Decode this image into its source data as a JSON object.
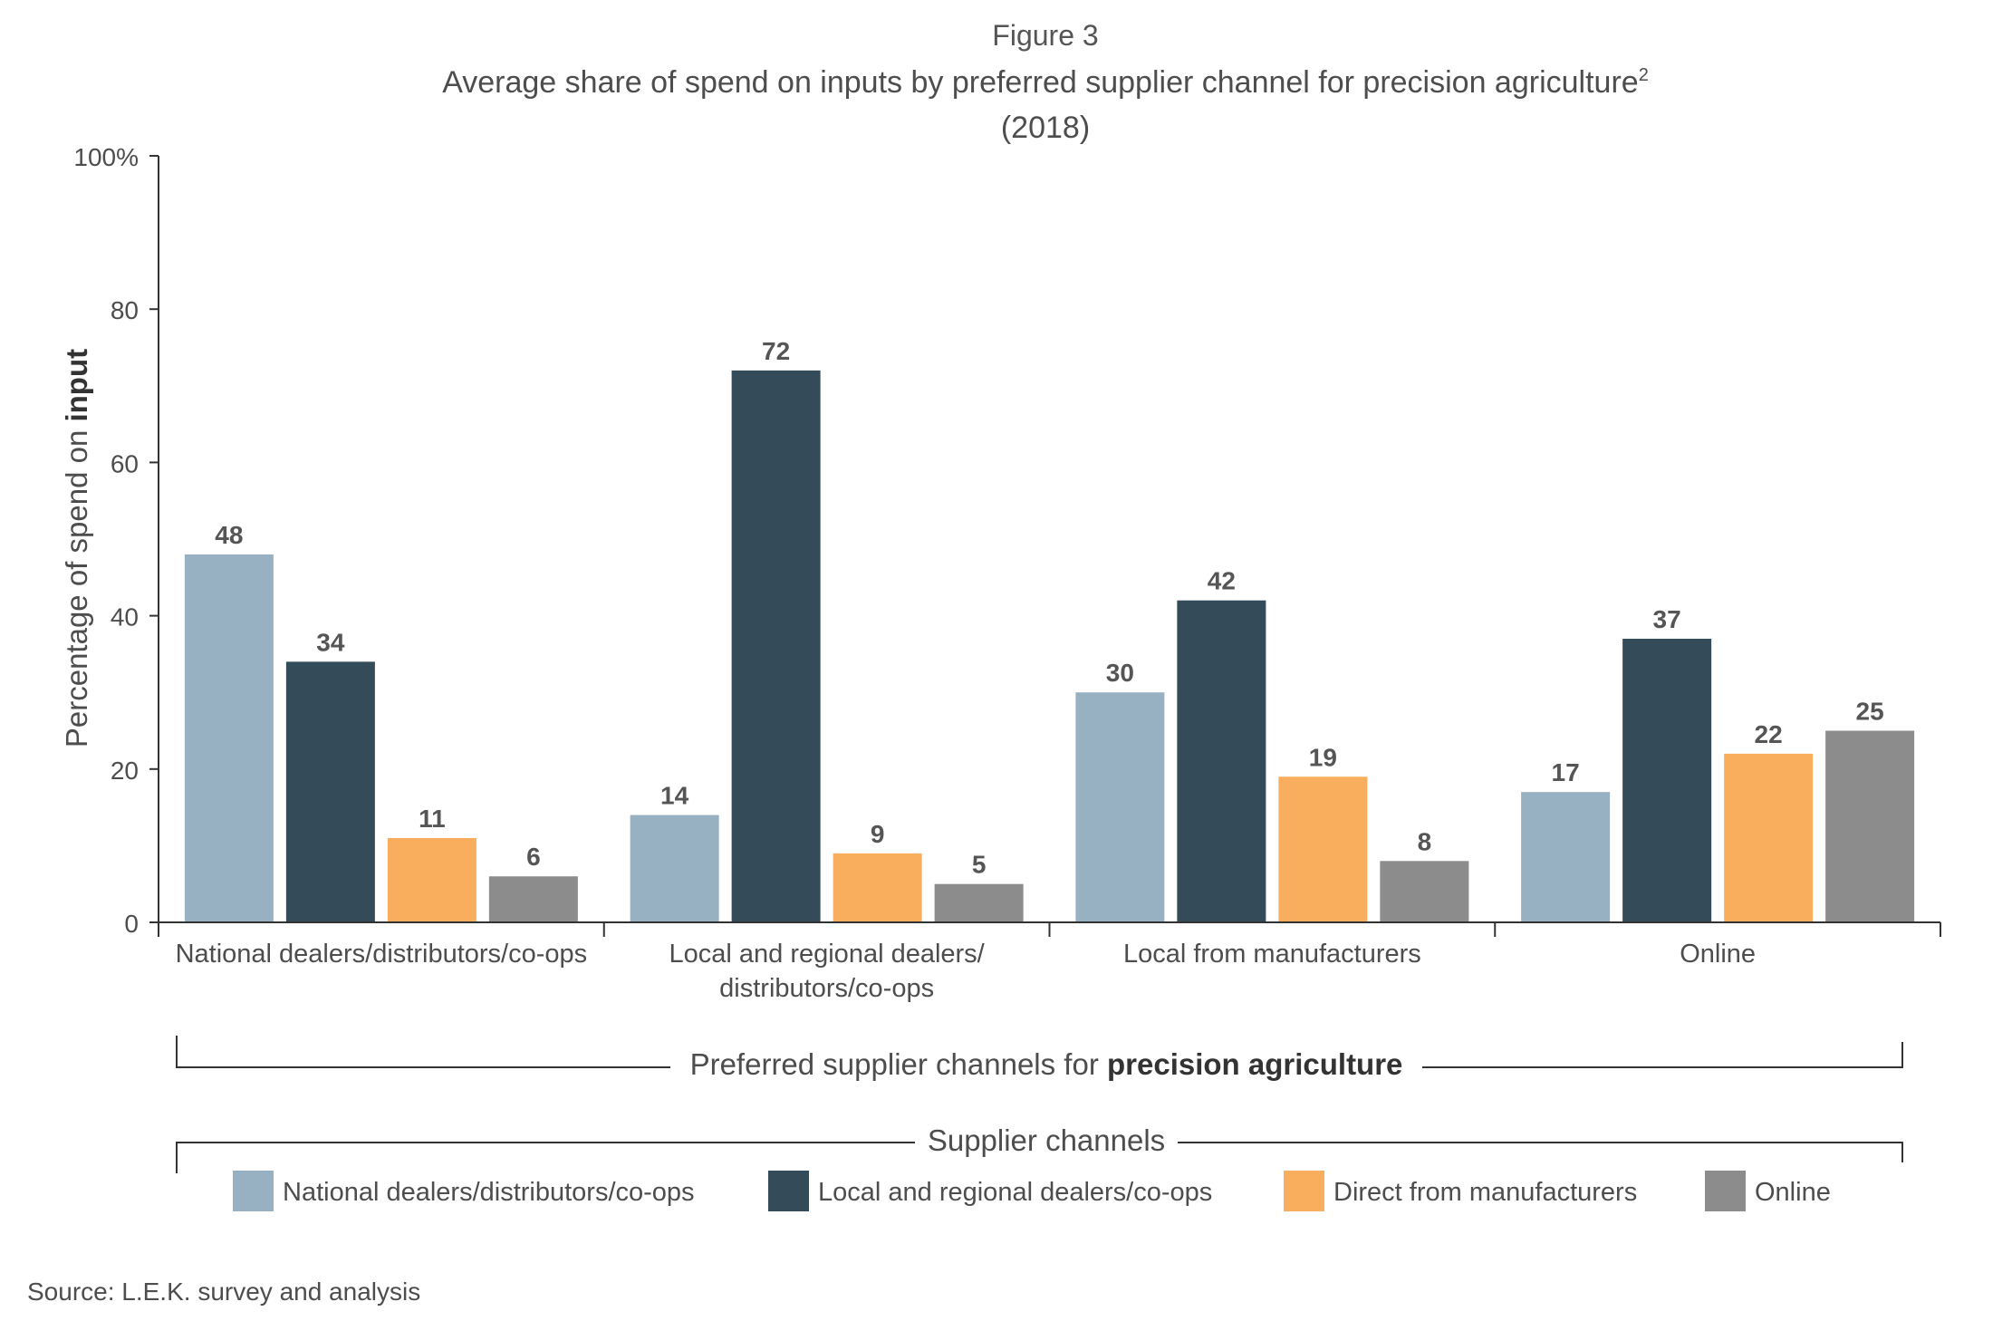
{
  "figure_label": "Figure 3",
  "source": "Source: L.E.K. survey and analysis",
  "chart_data": {
    "type": "bar",
    "title": "Average share of spend on inputs by preferred supplier channel for precision agriculture",
    "title_footnote": "2",
    "subtitle": "(2018)",
    "ylabel_prefix": "Percentage of spend on ",
    "ylabel_emphasis": "input",
    "xlabel_prefix": "Preferred supplier channels for ",
    "xlabel_emphasis": "precision agriculture",
    "legend_title": "Supplier channels",
    "legend_position": "bottom",
    "ylim": [
      0,
      100
    ],
    "y_ticks": [
      "0",
      "20",
      "40",
      "60",
      "80",
      "100%"
    ],
    "y_tick_values": [
      0,
      20,
      40,
      60,
      80,
      100
    ],
    "grid": false,
    "categories": [
      [
        "National dealers/distributors/co-ops"
      ],
      [
        "Local and regional dealers/",
        "distributors/co-ops"
      ],
      [
        "Local from manufacturers"
      ],
      [
        "Online"
      ]
    ],
    "series": [
      {
        "name": "National dealers/distributors/co-ops",
        "color": "#98b1c2",
        "values": [
          48,
          14,
          30,
          17
        ]
      },
      {
        "name": "Local and regional dealers/co-ops",
        "color": "#344b59",
        "values": [
          34,
          72,
          42,
          37
        ]
      },
      {
        "name": "Direct from manufacturers",
        "color": "#f9ae5d",
        "values": [
          11,
          9,
          19,
          22
        ]
      },
      {
        "name": "Online",
        "color": "#8c8c8c",
        "values": [
          6,
          5,
          8,
          25
        ]
      }
    ],
    "text_color": "#4d4d4d",
    "label_color": "#555555",
    "axis_color": "#333333"
  }
}
